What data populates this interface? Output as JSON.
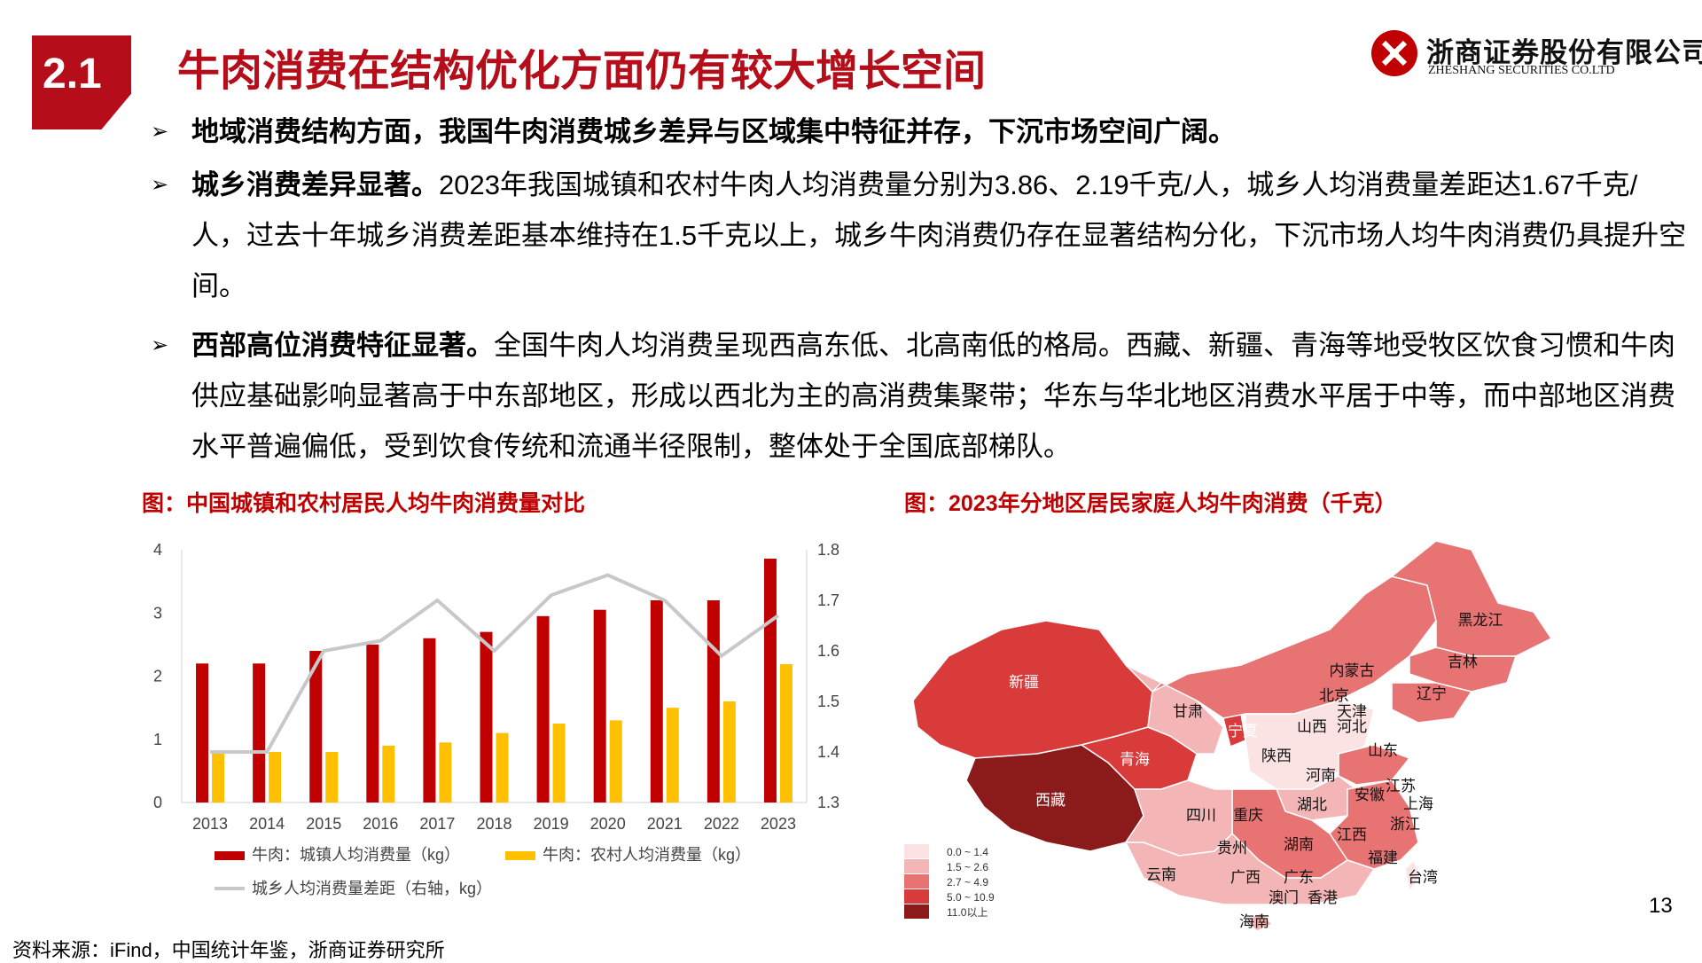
{
  "section_number": "2.1",
  "title": "牛肉消费在结构优化方面仍有较大增长空间",
  "logo": {
    "cn": "浙商证券股份有限公司",
    "en": "ZHESHANG SECURITIES CO.LTD"
  },
  "bullets": [
    {
      "lead": "地域消费结构方面，我国牛肉消费城乡差异与区域集中特征并存，下沉市场空间广阔。",
      "body": ""
    },
    {
      "lead": "城乡消费差异显著。",
      "body": "2023年我国城镇和农村牛肉人均消费量分别为3.86、2.19千克/人，城乡人均消费量差距达1.67千克/人，过去十年城乡消费差距基本维持在1.5千克以上，城乡牛肉消费仍存在显著结构分化，下沉市场人均牛肉消费仍具提升空间。"
    },
    {
      "lead": "西部高位消费特征显著。",
      "body": "全国牛肉人均消费呈现西高东低、北高南低的格局。西藏、新疆、青海等地受牧区饮食习惯和牛肉供应基础影响显著高于中东部地区，形成以西北为主的高消费集聚带；华东与华北地区消费水平居于中等，而中部地区消费水平普遍偏低，受到饮食传统和流通半径限制，整体处于全国底部梯队。"
    }
  ],
  "figure_left_title": "图：中国城镇和农村居民人均牛肉消费量对比",
  "figure_right_title": "图：2023年分地区居民家庭人均牛肉消费（千克）",
  "chart_data": {
    "type": "bar",
    "categories": [
      "2013",
      "2014",
      "2015",
      "2016",
      "2017",
      "2018",
      "2019",
      "2020",
      "2021",
      "2022",
      "2023"
    ],
    "series": [
      {
        "name": "牛肉：城镇人均消费量（kg）",
        "type": "bar",
        "axis": "left",
        "color": "#c00000",
        "values": [
          2.2,
          2.2,
          2.4,
          2.5,
          2.6,
          2.7,
          2.95,
          3.05,
          3.2,
          3.2,
          3.86
        ]
      },
      {
        "name": "牛肉：农村人均消费量（kg）",
        "type": "bar",
        "axis": "left",
        "color": "#ffc000",
        "values": [
          0.8,
          0.8,
          0.8,
          0.9,
          0.95,
          1.1,
          1.25,
          1.3,
          1.5,
          1.6,
          2.19
        ]
      },
      {
        "name": "城乡人均消费量差距（右轴，kg）",
        "type": "line",
        "axis": "right",
        "color": "#c8c8c8",
        "values": [
          1.4,
          1.4,
          1.6,
          1.62,
          1.7,
          1.6,
          1.71,
          1.75,
          1.7,
          1.59,
          1.67
        ]
      }
    ],
    "ylim_left": [
      0,
      4
    ],
    "yticks_left": [
      "0",
      "1",
      "2",
      "3",
      "4"
    ],
    "ylim_right": [
      1.3,
      1.8
    ],
    "yticks_right": [
      "1.3",
      "1.4",
      "1.5",
      "1.6",
      "1.7",
      "1.8"
    ],
    "legend_position": "bottom"
  },
  "map": {
    "legend": [
      "0.0 ~ 1.4",
      "1.5 ~ 2.6",
      "2.7 ~ 4.9",
      "5.0 ~ 10.9",
      "11.0以上"
    ],
    "legend_colors": [
      "#fbe3e3",
      "#f3b5b5",
      "#e77373",
      "#d93b3b",
      "#8b1a1a"
    ],
    "labels": [
      "黑龙江",
      "吉林",
      "辽宁",
      "内蒙古",
      "北京",
      "天津",
      "河北",
      "山西",
      "山东",
      "新疆",
      "甘肃",
      "宁夏",
      "青海",
      "陕西",
      "河南",
      "江苏",
      "上海",
      "安徽",
      "湖北",
      "西藏",
      "四川",
      "重庆",
      "浙江",
      "江西",
      "湖南",
      "贵州",
      "福建",
      "云南",
      "广西",
      "广东",
      "台湾",
      "澳门",
      "香港",
      "海南"
    ]
  },
  "source": "资料来源：iFind，中国统计年鉴，浙商证券研究所",
  "page_number": "13"
}
